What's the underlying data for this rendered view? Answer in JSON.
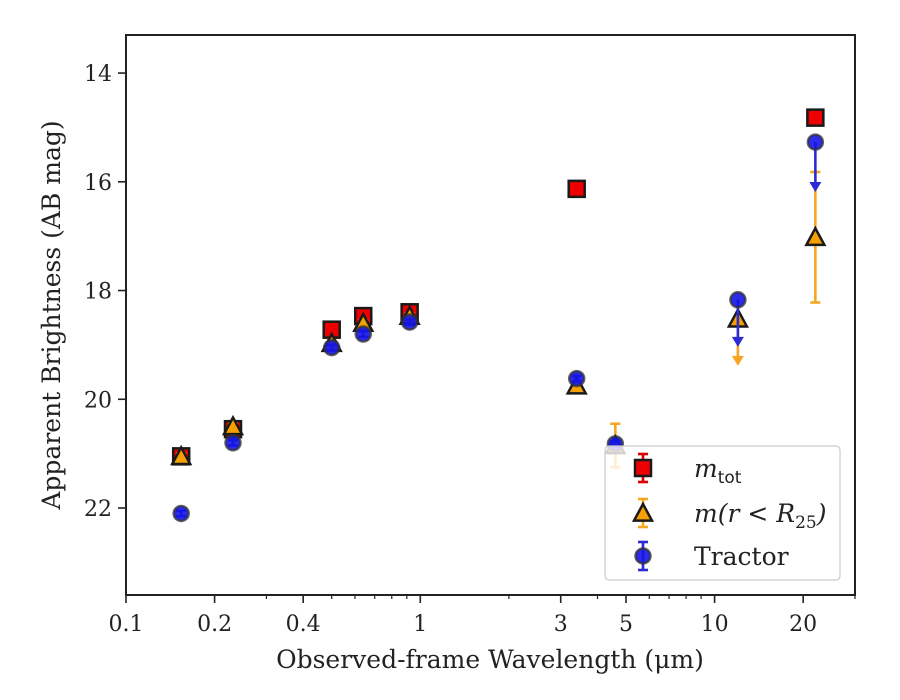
{
  "chart_data": {
    "type": "scatter",
    "xlabel": "Observed-frame Wavelength (μm)",
    "ylabel": "Apparent Brightness (AB mag)",
    "xscale": "log",
    "yaxis_inverted": true,
    "xlim": [
      0.1,
      30
    ],
    "ylim": [
      23.6,
      13.3
    ],
    "xticks": [
      {
        "value": 0.1,
        "label": "0.1"
      },
      {
        "value": 0.2,
        "label": "0.2"
      },
      {
        "value": 0.4,
        "label": "0.4"
      },
      {
        "value": 1,
        "label": "1"
      },
      {
        "value": 3,
        "label": "3"
      },
      {
        "value": 5,
        "label": "5"
      },
      {
        "value": 10,
        "label": "10"
      },
      {
        "value": 20,
        "label": "20"
      }
    ],
    "yticks": [
      {
        "value": 14,
        "label": "14"
      },
      {
        "value": 16,
        "label": "16"
      },
      {
        "value": 18,
        "label": "18"
      },
      {
        "value": 20,
        "label": "20"
      },
      {
        "value": 22,
        "label": "22"
      }
    ],
    "grid": false,
    "legend_position": "lower-right",
    "series": [
      {
        "name": "m_tot",
        "legend_label": "m_tot",
        "marker": "square",
        "face_color": "#ee0000",
        "error_color": "#dd0000",
        "points": [
          {
            "x": 0.154,
            "y": 21.05,
            "err": 0.05
          },
          {
            "x": 0.231,
            "y": 20.55,
            "err": 0.05
          },
          {
            "x": 0.5,
            "y": 18.72,
            "err": 0.05
          },
          {
            "x": 0.64,
            "y": 18.47,
            "err": 0.05
          },
          {
            "x": 0.92,
            "y": 18.4,
            "err": 0.05
          },
          {
            "x": 3.4,
            "y": 16.13,
            "err": 0.05
          },
          {
            "x": 22.0,
            "y": 14.82,
            "err": 0.05
          }
        ]
      },
      {
        "name": "m(r<R25)",
        "legend_label": "m(r < R25)",
        "marker": "triangle",
        "face_color": "#f5a000",
        "error_color": "#f5a623",
        "points": [
          {
            "x": 0.154,
            "y": 21.05,
            "err": 0.05
          },
          {
            "x": 0.231,
            "y": 20.5,
            "err": 0.05
          },
          {
            "x": 0.5,
            "y": 18.97,
            "err": 0.05
          },
          {
            "x": 0.64,
            "y": 18.6,
            "err": 0.05
          },
          {
            "x": 0.92,
            "y": 18.47,
            "err": 0.05
          },
          {
            "x": 3.4,
            "y": 19.75,
            "err": 0.05
          },
          {
            "x": 4.6,
            "y": 20.85,
            "err": 0.4
          },
          {
            "x": 12.0,
            "y": 18.52,
            "upper_limit_to": 19.35
          },
          {
            "x": 22.0,
            "y": 17.02,
            "err": 1.2
          }
        ]
      },
      {
        "name": "Tractor",
        "legend_label": "Tractor",
        "marker": "circle",
        "face_color": "#1414e6",
        "error_color": "#2b2bd6",
        "points": [
          {
            "x": 0.154,
            "y": 22.1,
            "err": 0.05
          },
          {
            "x": 0.231,
            "y": 20.8,
            "err": 0.05
          },
          {
            "x": 0.5,
            "y": 19.05,
            "err": 0.05
          },
          {
            "x": 0.64,
            "y": 18.8,
            "err": 0.05
          },
          {
            "x": 0.92,
            "y": 18.58,
            "err": 0.05
          },
          {
            "x": 3.4,
            "y": 19.62,
            "err": 0.05
          },
          {
            "x": 4.6,
            "y": 20.82,
            "err": 0.05
          },
          {
            "x": 12.0,
            "y": 18.17,
            "upper_limit_to": 19.0
          },
          {
            "x": 22.0,
            "y": 15.27,
            "upper_limit_to": 16.15
          }
        ]
      }
    ]
  }
}
